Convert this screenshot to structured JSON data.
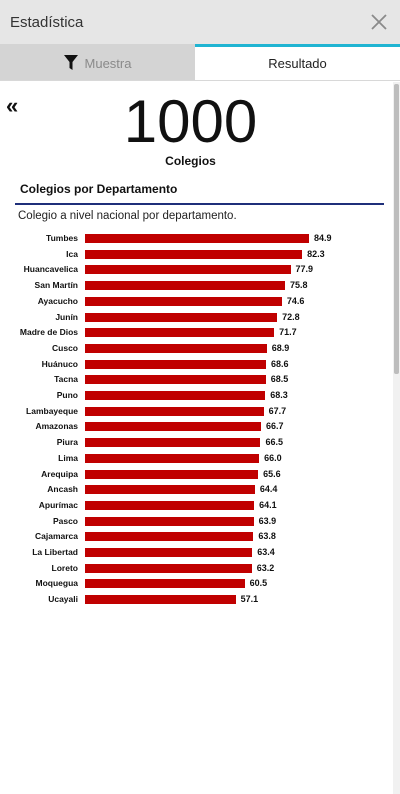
{
  "window": {
    "title": "Estadística"
  },
  "tabs": [
    {
      "label": "Muestra",
      "icon": "filter-icon",
      "active": false
    },
    {
      "label": "Resultado",
      "active": true
    }
  ],
  "summary": {
    "count": "1000",
    "count_label": "Colegios"
  },
  "section": {
    "title": "Colegios por Departamento",
    "subtitle": "Colegio a nivel nacional por departamento."
  },
  "colors": {
    "bar": "#c00000",
    "accent_tab": "#20b4d2",
    "rule": "#1f2f7a"
  },
  "chart_data": {
    "type": "bar",
    "orientation": "horizontal",
    "categories": [
      "Tumbes",
      "Ica",
      "Huancavelica",
      "San Martín",
      "Ayacucho",
      "Junín",
      "Madre de Dios",
      "Cusco",
      "Huánuco",
      "Tacna",
      "Puno",
      "Lambayeque",
      "Amazonas",
      "Piura",
      "Lima",
      "Arequipa",
      "Ancash",
      "Apurímac",
      "Pasco",
      "Cajamarca",
      "La Libertad",
      "Loreto",
      "Moquegua",
      "Ucayali"
    ],
    "values": [
      84.9,
      82.3,
      77.9,
      75.8,
      74.6,
      72.8,
      71.7,
      68.9,
      68.6,
      68.5,
      68.3,
      67.7,
      66.7,
      66.5,
      66.0,
      65.6,
      64.4,
      64.1,
      63.9,
      63.8,
      63.4,
      63.2,
      60.5,
      57.1
    ],
    "value_labels": [
      "84.9",
      "82.3",
      "77.9",
      "75.8",
      "74.6",
      "72.8",
      "71.7",
      "68.9",
      "68.6",
      "68.5",
      "68.3",
      "67.7",
      "66.7",
      "66.5",
      "66.0",
      "65.6",
      "64.4",
      "64.1",
      "63.9",
      "63.8",
      "63.4",
      "63.2",
      "60.5",
      "57.1"
    ],
    "grid": false,
    "legend": "none"
  }
}
